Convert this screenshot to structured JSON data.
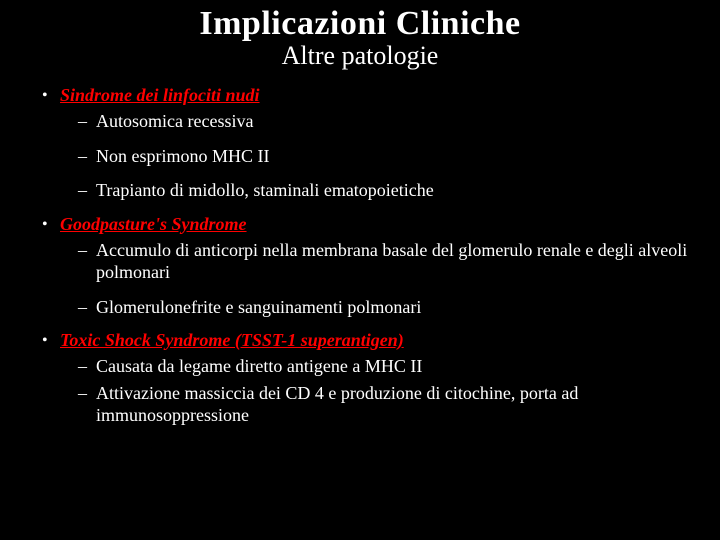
{
  "slide": {
    "title": "Implicazioni Cliniche",
    "subtitle": "Altre patologie",
    "title_color": "#ffffff",
    "title_fontsize": 34,
    "subtitle_fontsize": 26,
    "background_color": "#000000",
    "text_color": "#ffffff",
    "category_color": "#ff0000",
    "body_fontsize": 18,
    "items": [
      {
        "category": "Sindrome dei linfociti nudi",
        "sub": [
          "Autosomica recessiva",
          "Non esprimono MHC II",
          "Trapianto di midollo, staminali ematopoietiche"
        ],
        "tight": false
      },
      {
        "category": "Goodpasture's Syndrome",
        "sub": [
          "Accumulo di anticorpi nella membrana basale del glomerulo renale e degli alveoli polmonari",
          "Glomerulonefrite e sanguinamenti polmonari"
        ],
        "tight": false
      },
      {
        "category": "Toxic Shock Syndrome (TSST-1 superantigen)",
        "sub": [
          "Causata da legame diretto antigene a MHC II",
          "Attivazione massiccia dei CD 4 e produzione di citochine, porta ad immunosoppressione"
        ],
        "tight": true
      }
    ]
  }
}
